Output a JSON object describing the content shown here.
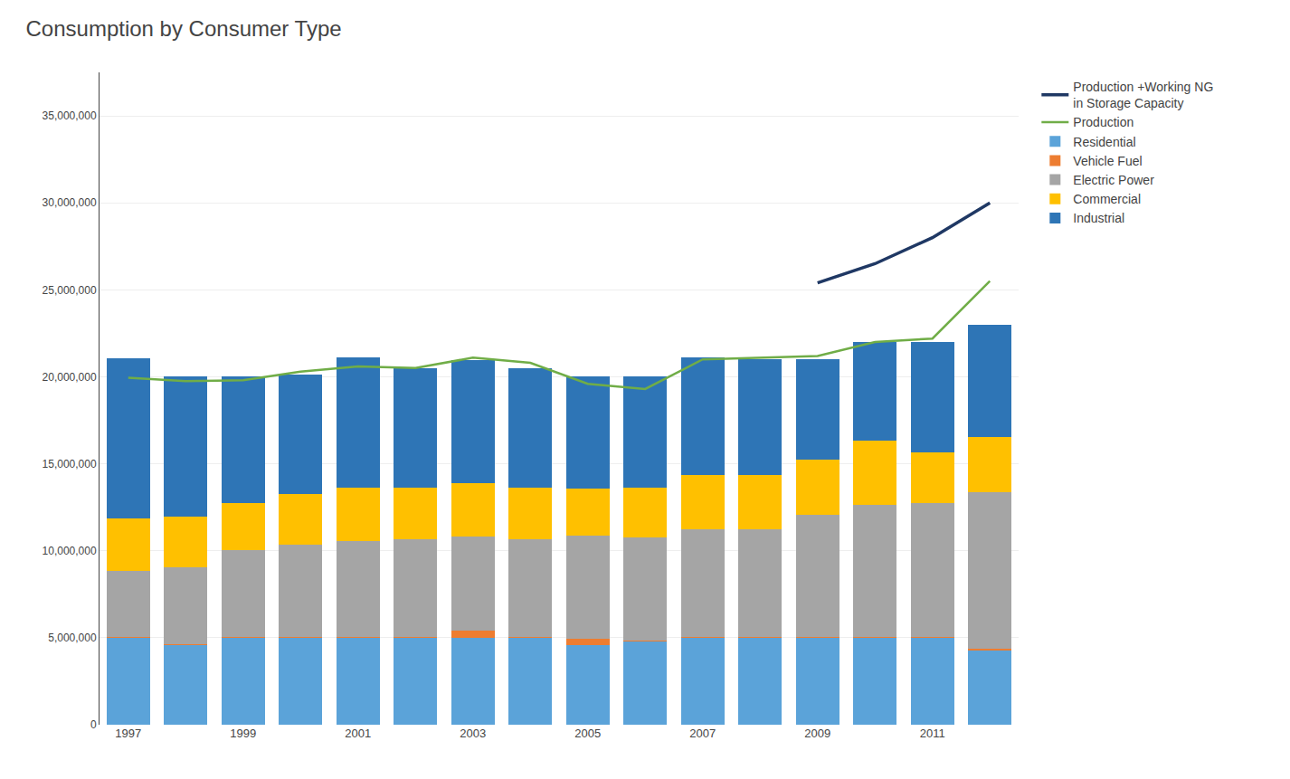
{
  "chart_data": {
    "type": "bar",
    "stacked": true,
    "title": "Consumption by Consumer Type",
    "categories": [
      "1997",
      null,
      "1999",
      null,
      "2001",
      null,
      "2003",
      null,
      "2005",
      null,
      "2007",
      null,
      "2009",
      null,
      "2011",
      null
    ],
    "series": [
      {
        "name": "Residential",
        "type": "bar",
        "color": "#5BA3D9",
        "values": [
          5000000,
          4600000,
          5000000,
          5000000,
          5000000,
          5000000,
          5000000,
          5000000,
          4600000,
          4800000,
          5000000,
          5000000,
          5000000,
          5000000,
          5000000,
          4300000
        ]
      },
      {
        "name": "Vehicle Fuel",
        "type": "bar",
        "color": "#ED7D31",
        "values": [
          50000,
          50000,
          50000,
          50000,
          50000,
          50000,
          400000,
          50000,
          350000,
          50000,
          50000,
          50000,
          50000,
          50000,
          50000,
          50000
        ]
      },
      {
        "name": "Electric Power",
        "type": "bar",
        "color": "#A5A5A5",
        "values": [
          3800000,
          4400000,
          5000000,
          5300000,
          5500000,
          5600000,
          5400000,
          5600000,
          5900000,
          5900000,
          6200000,
          6200000,
          7000000,
          7600000,
          7700000,
          9000000
        ]
      },
      {
        "name": "Commercial",
        "type": "bar",
        "color": "#FFC000",
        "values": [
          3000000,
          2900000,
          2700000,
          2900000,
          3100000,
          3000000,
          3100000,
          3000000,
          2700000,
          2900000,
          3100000,
          3100000,
          3200000,
          3700000,
          2900000,
          3200000
        ]
      },
      {
        "name": "Industrial",
        "type": "bar",
        "color": "#2E75B6",
        "values": [
          9200000,
          8100000,
          7250000,
          6900000,
          7450000,
          6850000,
          7050000,
          6850000,
          6450000,
          6350000,
          6750000,
          6650000,
          5750000,
          5650000,
          6350000,
          6450000
        ]
      },
      {
        "name": "Production",
        "type": "line",
        "color": "#70AD47",
        "values": [
          19950000,
          19750000,
          19800000,
          20300000,
          20600000,
          20500000,
          21100000,
          20800000,
          19600000,
          19300000,
          21000000,
          21100000,
          21200000,
          22000000,
          22200000,
          25500000
        ]
      },
      {
        "name": "Production +Working NG\nin Storage Capacity",
        "type": "line",
        "color": "#1F3864",
        "values": [
          null,
          null,
          null,
          null,
          null,
          null,
          null,
          null,
          null,
          null,
          null,
          null,
          25400000,
          26500000,
          28000000,
          30000000
        ]
      }
    ],
    "ylim": [
      0,
      37500000
    ],
    "yticks": [
      0,
      {
        "value": 5000000,
        "label": "5,000,000"
      },
      {
        "value": 10000000,
        "label": "10,000,000"
      },
      {
        "value": 15000000,
        "label": "15,000,000"
      },
      {
        "value": 20000000,
        "label": "20,000,000"
      },
      {
        "value": 25000000,
        "label": "25,000,000"
      },
      {
        "value": 30000000,
        "label": "30,000,000"
      },
      {
        "value": 35000000,
        "label": "35,000,000"
      }
    ],
    "grid": true,
    "legend": "right"
  }
}
